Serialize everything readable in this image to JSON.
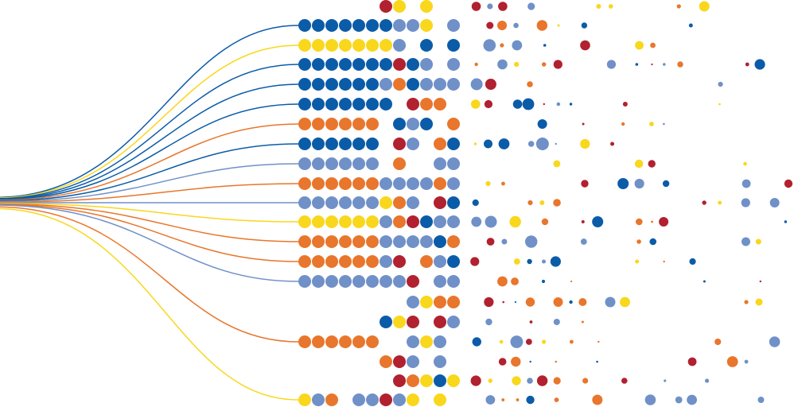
{
  "palette": {
    "blue": "#0b5ca8",
    "yellow": "#f9d71c",
    "orange": "#e8762c",
    "lightblue": "#7090c8",
    "red": "#b1212f"
  }
}
